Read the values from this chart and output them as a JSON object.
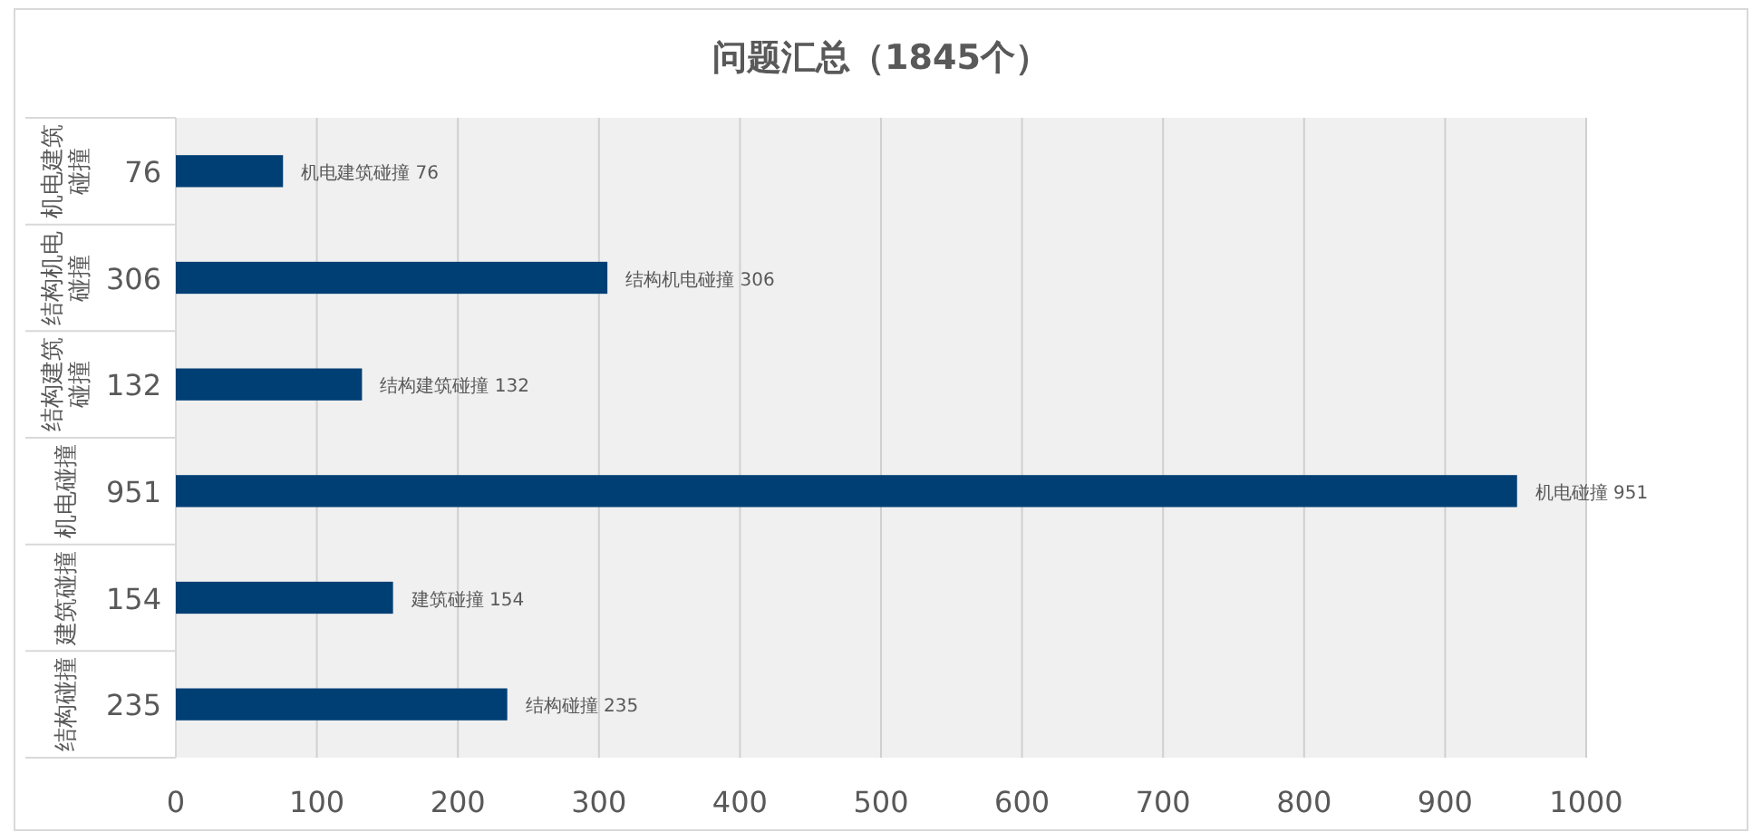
{
  "chart_data": {
    "type": "bar",
    "orientation": "horizontal",
    "title": "问题汇总（1845个）",
    "categories": [
      "机电建筑碰撞",
      "结构机电碰撞",
      "结构建筑碰撞",
      "机电碰撞",
      "建筑碰撞",
      "结构碰撞"
    ],
    "values": [
      76,
      306,
      132,
      951,
      154,
      235
    ],
    "value_labels": [
      "76",
      "306",
      "132",
      "951",
      "154",
      "235"
    ],
    "annotations": [
      {
        "text": "机电建筑碰撞 76",
        "x": 76,
        "y": "机电建筑碰撞"
      },
      {
        "text": "结构机电碰撞 306",
        "x": 306,
        "y": "结构机电碰撞"
      },
      {
        "text": "结构建筑碰撞 132",
        "x": 132,
        "y": "结构建筑碰撞"
      },
      {
        "text": "机电碰撞 951",
        "x": 951,
        "y": "机电碰撞"
      },
      {
        "text": "建筑碰撞 154",
        "x": 154,
        "y": "建筑碰撞"
      },
      {
        "text": "结构碰撞 235",
        "x": 235,
        "y": "结构碰撞"
      }
    ],
    "color": "#003f74",
    "xlim": [
      0,
      1000
    ],
    "xticks": [
      0,
      100,
      200,
      300,
      400,
      500,
      600,
      700,
      800,
      900,
      1000
    ],
    "grid": "x"
  }
}
